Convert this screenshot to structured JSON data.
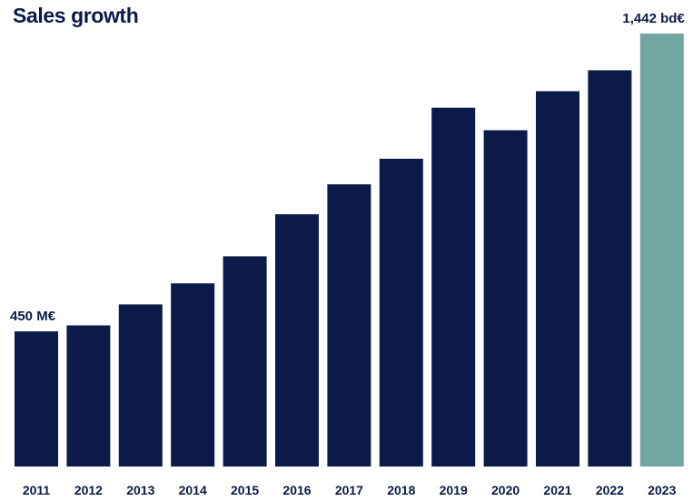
{
  "chart_data": {
    "type": "bar",
    "title": "Sales growth",
    "xlabel": "",
    "ylabel": "",
    "unit": "M€",
    "categories": [
      "2011",
      "2012",
      "2013",
      "2014",
      "2015",
      "2016",
      "2017",
      "2018",
      "2019",
      "2020",
      "2021",
      "2022",
      "2023"
    ],
    "values": [
      450,
      470,
      540,
      610,
      700,
      840,
      940,
      1025,
      1195,
      1120,
      1250,
      1320,
      1442
    ],
    "ylim": [
      0,
      1442
    ],
    "grid": false,
    "legend": "none",
    "data_labels": [
      {
        "category": "2011",
        "text": "450 M€"
      },
      {
        "category": "2023",
        "text": "1,442 bd€"
      }
    ],
    "colors": {
      "bar": "#0b1a48",
      "highlight_bar": "#71a7a0",
      "highlight_category": "2023",
      "text": "#0b1a48"
    }
  }
}
